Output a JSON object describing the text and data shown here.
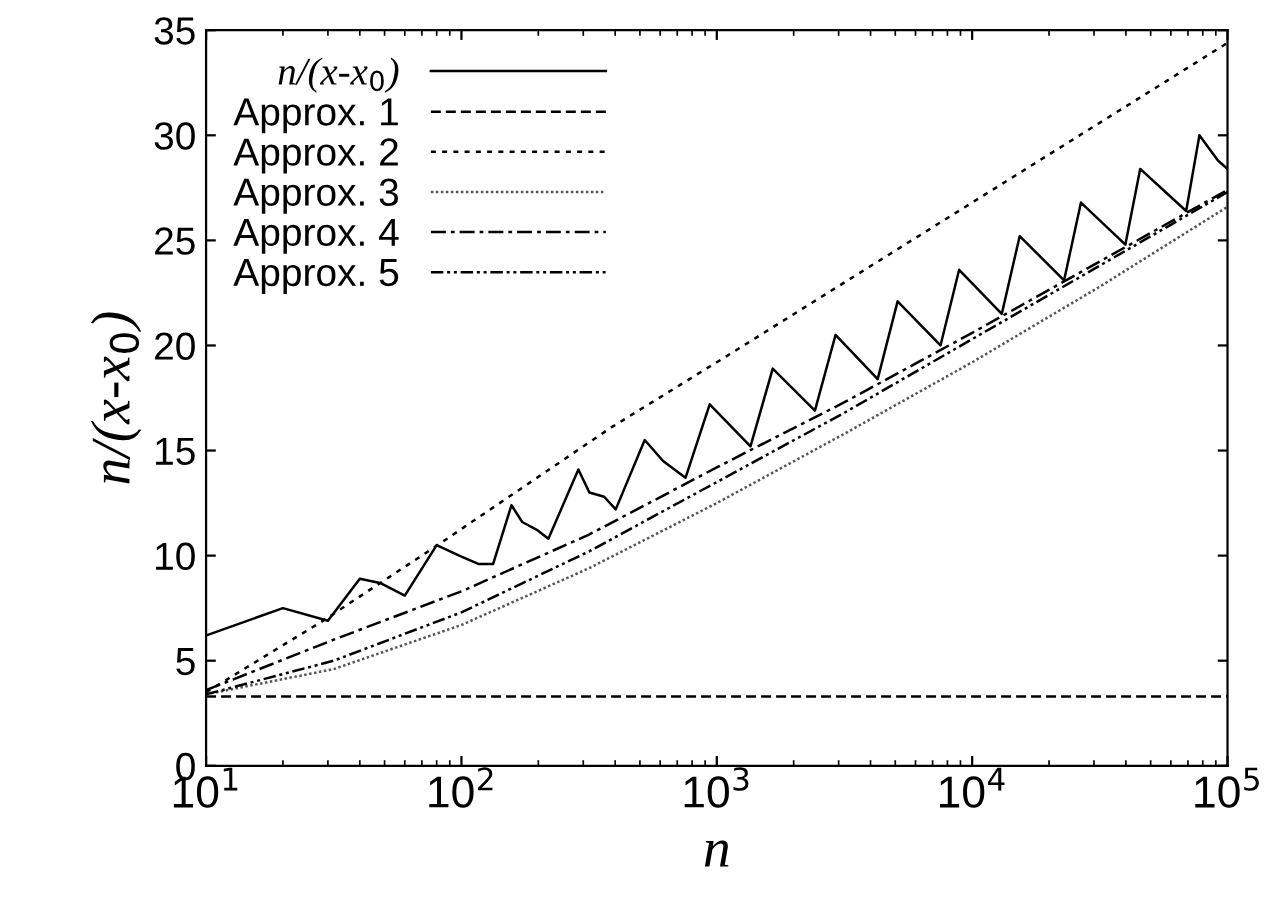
{
  "chart_data": {
    "type": "line",
    "xlabel": "n",
    "ylabel": "n/(x-x$_{0}$)",
    "log": "x",
    "xlim": [
      10,
      100000
    ],
    "xticks": [
      {
        "value": 10,
        "label": "10$^{1}$"
      },
      {
        "value": 100,
        "label": "10$^{2}$"
      },
      {
        "value": 1000,
        "label": "10$^{3}$"
      },
      {
        "value": 10000,
        "label": "10$^{4}$"
      },
      {
        "value": 100000,
        "label": "10$^{5}$"
      }
    ],
    "ylim": [
      0,
      35
    ],
    "yticks": [
      0,
      5,
      10,
      15,
      20,
      25,
      30,
      35
    ],
    "grid": false,
    "legend": "top left",
    "series": [
      {
        "name": "n/(x-x$_{0}$)",
        "color": "#000000",
        "line_style": "solid",
        "x": [
          10,
          20,
          30,
          40,
          48,
          60,
          80,
          98,
          117,
          133,
          157,
          173,
          199,
          219,
          287,
          317,
          362,
          402,
          522,
          616,
          754,
          938,
          1355,
          1656,
          2422,
          2917,
          4266,
          5105,
          7516,
          8892,
          13060,
          15350,
          22910,
          26670,
          39810,
          45500,
          68870,
          77620,
          91700,
          100000
        ],
        "values": [
          6.2,
          7.5,
          6.9,
          8.9,
          8.7,
          8.1,
          10.5,
          10.0,
          9.6,
          9.6,
          12.4,
          11.6,
          11.2,
          10.8,
          14.1,
          13.0,
          12.8,
          12.2,
          15.5,
          14.5,
          13.7,
          17.2,
          15.2,
          18.9,
          16.9,
          20.5,
          18.4,
          22.1,
          20.0,
          23.6,
          21.5,
          25.2,
          23.1,
          26.8,
          24.8,
          28.4,
          26.4,
          30.0,
          28.8,
          28.4
        ]
      },
      {
        "name": "Approx. 1",
        "color": "#000000",
        "line_style": "dashed",
        "x": [
          10,
          100000
        ],
        "values": [
          3.3,
          3.3
        ]
      },
      {
        "name": "Approx. 2",
        "color": "#000000",
        "line_style": "dotted",
        "x": [
          10,
          28.7,
          80.7,
          386,
          1000,
          10000,
          100000
        ],
        "values": [
          3.5,
          6.9,
          10.5,
          16.1,
          19.2,
          26.8,
          34.4
        ]
      },
      {
        "name": "Approx. 3",
        "color": "#555555",
        "line_style": "finedotted",
        "x": [
          10,
          31.6,
          100,
          316,
          1000,
          3162,
          10000,
          31620,
          100000
        ],
        "values": [
          3.4,
          4.6,
          6.7,
          9.4,
          12.5,
          15.8,
          19.2,
          22.8,
          26.6
        ]
      },
      {
        "name": "Approx. 4",
        "color": "#000000",
        "line_style": "dashdot",
        "x": [
          10,
          31.6,
          100,
          316,
          1000,
          3162,
          10000,
          31620,
          100000
        ],
        "values": [
          3.6,
          6.0,
          8.3,
          11.0,
          14.2,
          17.3,
          20.6,
          24.0,
          27.4
        ]
      },
      {
        "name": "Approx. 5",
        "color": "#000000",
        "line_style": "dashdotdot",
        "x": [
          10,
          31.6,
          100,
          316,
          1000,
          3162,
          10000,
          31620,
          100000
        ],
        "values": [
          3.4,
          5.0,
          7.3,
          10.2,
          13.5,
          16.8,
          20.3,
          23.8,
          27.3
        ]
      }
    ]
  }
}
